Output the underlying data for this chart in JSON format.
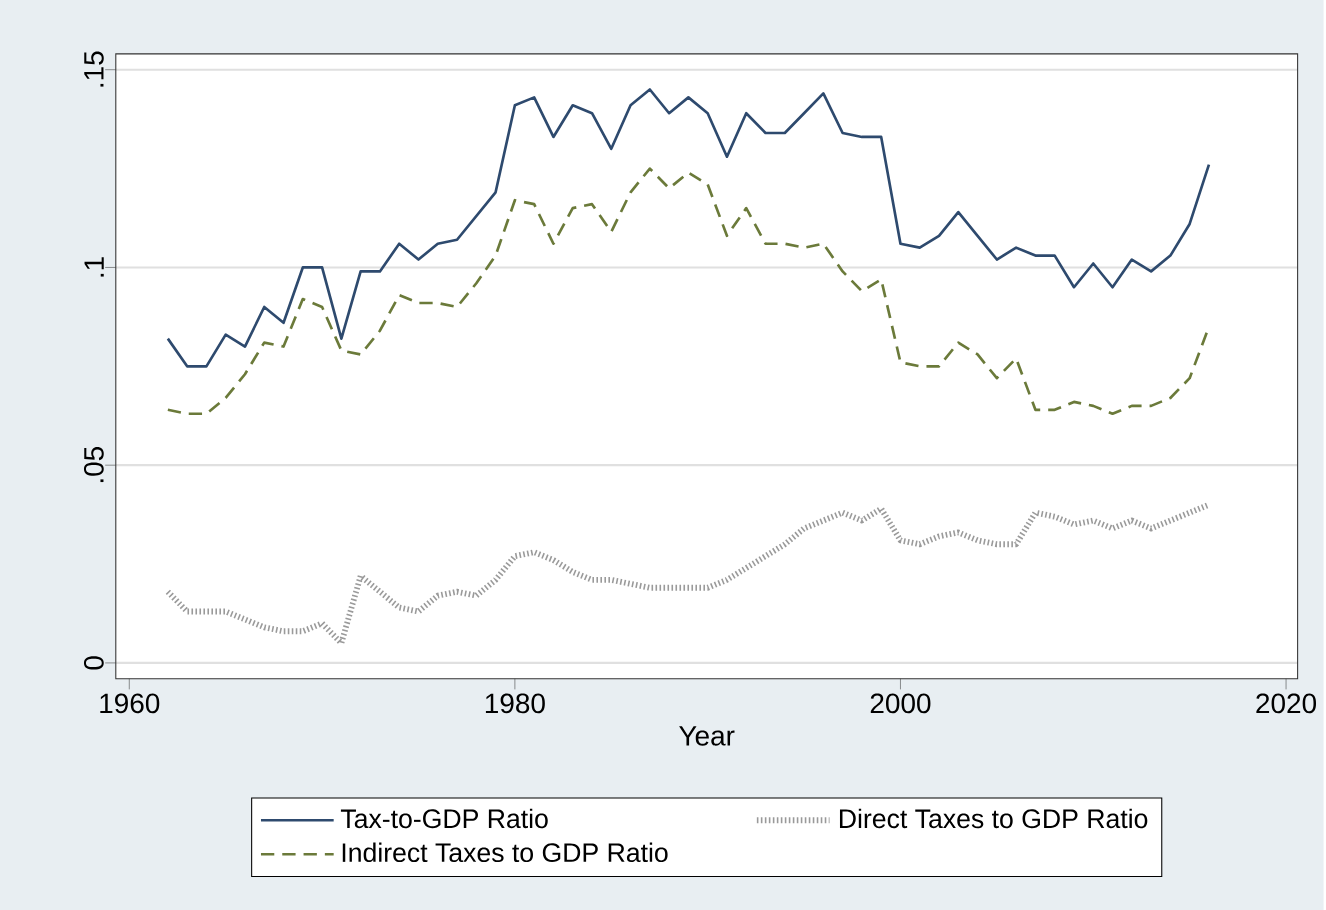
{
  "chart_data": {
    "type": "line",
    "xlabel": "Year",
    "x": [
      1962,
      1963,
      1964,
      1965,
      1966,
      1967,
      1968,
      1969,
      1970,
      1971,
      1972,
      1973,
      1974,
      1975,
      1976,
      1977,
      1978,
      1979,
      1980,
      1981,
      1982,
      1983,
      1984,
      1985,
      1986,
      1987,
      1988,
      1989,
      1990,
      1991,
      1992,
      1993,
      1994,
      1995,
      1996,
      1997,
      1998,
      1999,
      2000,
      2001,
      2002,
      2003,
      2004,
      2005,
      2006,
      2007,
      2008,
      2009,
      2010,
      2011,
      2012,
      2013,
      2014,
      2015,
      2016
    ],
    "series": [
      {
        "name": "Tax-to-GDP Ratio",
        "color": "#2e4a6e",
        "line_style": "solid",
        "values": [
          0.082,
          0.075,
          0.075,
          0.083,
          0.08,
          0.09,
          0.086,
          0.1,
          0.1,
          0.082,
          0.099,
          0.099,
          0.106,
          0.102,
          0.106,
          0.107,
          0.113,
          0.119,
          0.141,
          0.143,
          0.133,
          0.141,
          0.139,
          0.13,
          0.141,
          0.145,
          0.139,
          0.143,
          0.139,
          0.128,
          0.139,
          0.134,
          0.134,
          0.139,
          0.144,
          0.134,
          0.133,
          0.133,
          0.106,
          0.105,
          0.108,
          0.114,
          0.108,
          0.102,
          0.105,
          0.103,
          0.103,
          0.095,
          0.101,
          0.095,
          0.102,
          0.099,
          0.103,
          0.111,
          0.126
        ]
      },
      {
        "name": "Indirect Taxes to GDP Ratio",
        "color": "#6b7a3a",
        "line_style": "dashed",
        "values": [
          0.064,
          0.063,
          0.063,
          0.067,
          0.073,
          0.081,
          0.08,
          0.092,
          0.09,
          0.079,
          0.078,
          0.084,
          0.093,
          0.091,
          0.091,
          0.09,
          0.096,
          0.103,
          0.117,
          0.116,
          0.106,
          0.115,
          0.116,
          0.109,
          0.119,
          0.125,
          0.12,
          0.124,
          0.121,
          0.108,
          0.115,
          0.106,
          0.106,
          0.105,
          0.106,
          0.099,
          0.094,
          0.097,
          0.076,
          0.075,
          0.075,
          0.081,
          0.078,
          0.072,
          0.077,
          0.064,
          0.064,
          0.066,
          0.065,
          0.063,
          0.065,
          0.065,
          0.067,
          0.072,
          0.085
        ]
      },
      {
        "name": "Direct Taxes to GDP Ratio",
        "color": "#9a9a9a",
        "line_style": "dotted",
        "values": [
          0.018,
          0.013,
          0.013,
          0.013,
          0.011,
          0.009,
          0.008,
          0.008,
          0.01,
          0.005,
          0.022,
          0.018,
          0.014,
          0.013,
          0.017,
          0.018,
          0.017,
          0.021,
          0.027,
          0.028,
          0.026,
          0.023,
          0.021,
          0.021,
          0.02,
          0.019,
          0.019,
          0.019,
          0.019,
          0.021,
          0.024,
          0.027,
          0.03,
          0.034,
          0.036,
          0.038,
          0.036,
          0.039,
          0.031,
          0.03,
          0.032,
          0.033,
          0.031,
          0.03,
          0.03,
          0.038,
          0.037,
          0.035,
          0.036,
          0.034,
          0.036,
          0.034,
          0.036,
          0.038,
          0.04
        ]
      }
    ],
    "xlim": [
      1959.3,
      2020.6
    ],
    "ylim": [
      -0.004,
      0.154
    ],
    "xticks": [
      1960,
      1980,
      2000,
      2020
    ],
    "yticks": [
      0,
      {
        "value": 0.05,
        "label": ".05"
      },
      {
        "value": 0.1,
        "label": ".1"
      },
      {
        "value": 0.15,
        "label": ".15"
      }
    ],
    "grid": "y",
    "legend": "bottom"
  }
}
